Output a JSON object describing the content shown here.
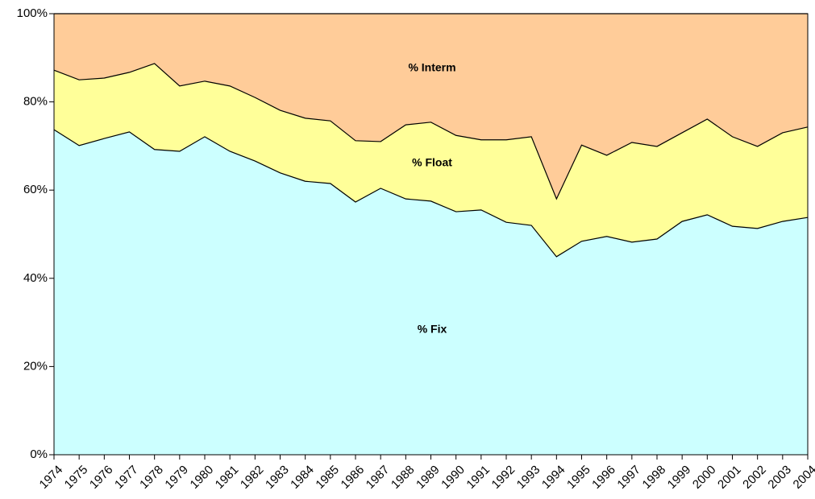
{
  "chart_data": {
    "type": "stacked-area",
    "categories": [
      "1974",
      "1975",
      "1976",
      "1977",
      "1978",
      "1979",
      "1980",
      "1981",
      "1982",
      "1983",
      "1984",
      "1985",
      "1986",
      "1987",
      "1988",
      "1989",
      "1990",
      "1991",
      "1992",
      "1993",
      "1994",
      "1995",
      "1996",
      "1997",
      "1998",
      "1999",
      "2000",
      "2001",
      "2002",
      "2003",
      "2004"
    ],
    "series": [
      {
        "name": "% Fix",
        "color": "#ccffff",
        "values": [
          73.7,
          70.1,
          71.7,
          73.2,
          69.2,
          68.8,
          72.1,
          68.8,
          66.6,
          63.9,
          62.0,
          61.5,
          57.3,
          60.4,
          58.0,
          57.5,
          55.1,
          55.5,
          52.7,
          52.0,
          44.9,
          48.4,
          49.5,
          48.2,
          48.9,
          52.9,
          54.4,
          51.8,
          51.3,
          52.9,
          53.8
        ]
      },
      {
        "name": "% Float",
        "color": "#ffff99",
        "values": [
          13.5,
          14.9,
          13.7,
          13.5,
          19.5,
          14.8,
          12.6,
          14.8,
          14.4,
          14.2,
          14.3,
          14.2,
          13.9,
          10.6,
          16.8,
          17.9,
          17.3,
          15.9,
          18.7,
          20.1,
          13.1,
          21.8,
          18.4,
          22.6,
          21.0,
          20.1,
          21.7,
          20.3,
          18.6,
          20.1,
          20.5
        ]
      },
      {
        "name": "% Interm",
        "color": "#ffcc99",
        "values": [
          12.8,
          15.0,
          14.6,
          13.3,
          11.3,
          16.4,
          15.3,
          16.4,
          19.0,
          21.9,
          23.7,
          24.3,
          28.8,
          29.0,
          25.2,
          24.6,
          27.6,
          28.6,
          28.6,
          27.9,
          42.0,
          29.8,
          32.1,
          29.2,
          30.1,
          27.0,
          23.9,
          27.9,
          30.1,
          27.0,
          25.7
        ]
      }
    ],
    "ylim": [
      0,
      100
    ],
    "yticks": [
      {
        "value": 0,
        "label": "0%"
      },
      {
        "value": 20,
        "label": "20%"
      },
      {
        "value": 40,
        "label": "40%"
      },
      {
        "value": 60,
        "label": "60%"
      },
      {
        "value": 80,
        "label": "80%"
      },
      {
        "value": 100,
        "label": "100%"
      }
    ]
  }
}
